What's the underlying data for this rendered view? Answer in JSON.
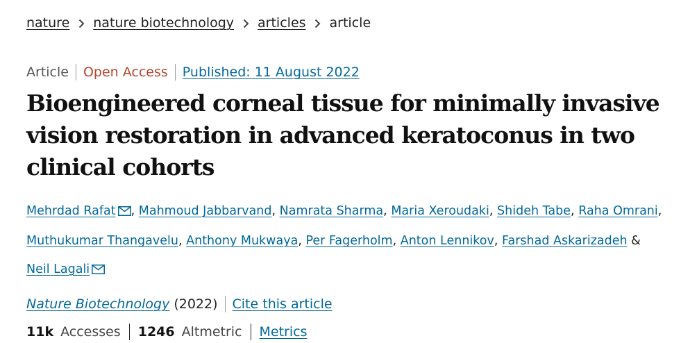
{
  "breadcrumb": {
    "items": [
      "nature",
      "nature biotechnology",
      "articles"
    ],
    "current": "article"
  },
  "meta": {
    "type": "Article",
    "access": "Open Access",
    "published": "Published: 11 August 2022"
  },
  "title": "Bioengineered corneal tissue for minimally invasive vision restoration in advanced keratoconus in two clinical cohorts",
  "authors": [
    {
      "name": "Mehrdad Rafat",
      "sep": ","
    },
    {
      "name": "Mahmoud Jabbarvand",
      "sep": ","
    },
    {
      "name": "Namrata Sharma",
      "sep": ","
    },
    {
      "name": "Maria Xeroudaki",
      "sep": ","
    },
    {
      "name": "Shideh Tabe",
      "sep": ","
    },
    {
      "name": "Raha Omrani",
      "sep": ","
    },
    {
      "name": "Muthukumar Thangavelu",
      "sep": ","
    },
    {
      "name": "Anthony Mukwaya",
      "sep": ","
    },
    {
      "name": "Per Fagerholm",
      "sep": ","
    },
    {
      "name": "Anton Lennikov",
      "sep": ","
    },
    {
      "name": "Farshad Askarizadeh",
      "sep": " &"
    },
    {
      "name": "Neil Lagali",
      "sep": ""
    }
  ],
  "citation": {
    "journal": "Nature Biotechnology",
    "year": "(2022)",
    "cite_label": "Cite this article"
  },
  "metrics": {
    "accesses_value": "11k",
    "accesses_label": "Accesses",
    "altmetric_value": "1246",
    "altmetric_label": "Altmetric",
    "metrics_link": "Metrics"
  },
  "colors": {
    "link": "#01689b",
    "open_access": "#b8432e",
    "text": "#222222"
  },
  "icons": [
    "chevron-right-icon",
    "envelope-icon"
  ]
}
